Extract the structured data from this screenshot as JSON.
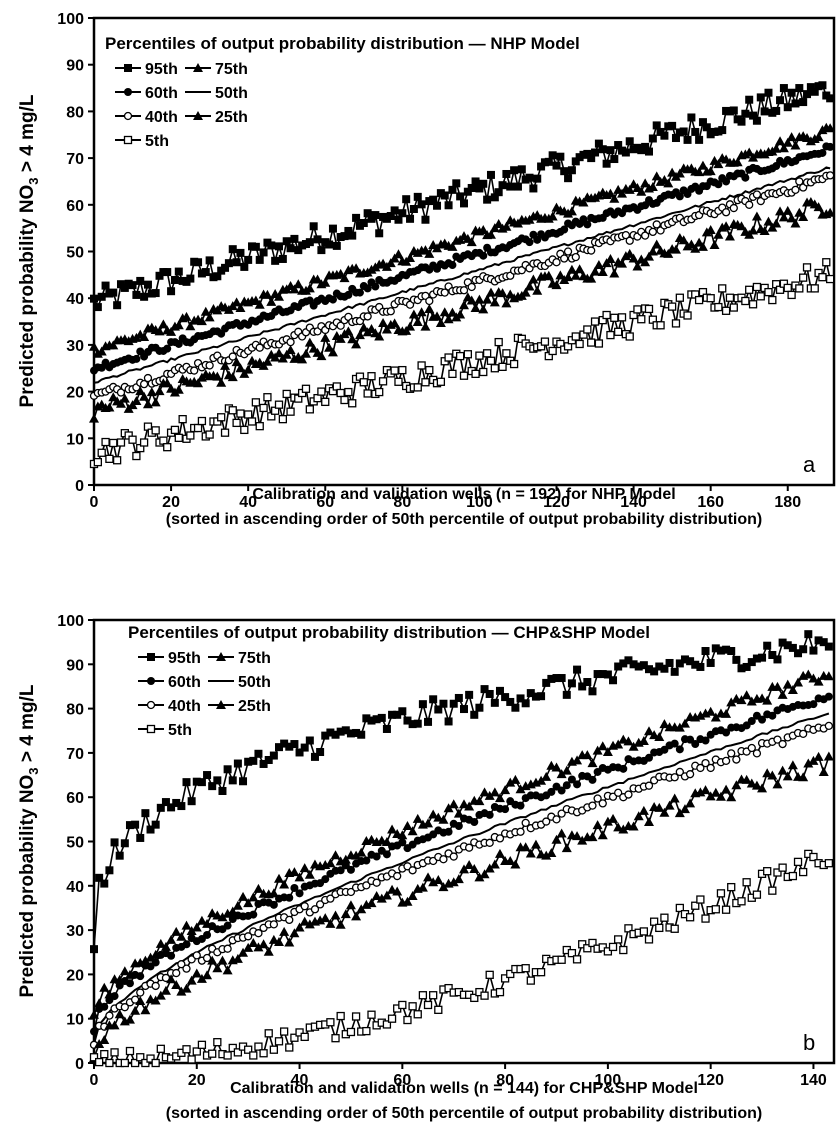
{
  "chart_data": [
    {
      "type": "line",
      "panel": "a",
      "title": "Percentiles of output probability distribution — NHP Model",
      "xlabel": "Calibration and validation wells (n = 192) for NHP Model",
      "xlabel2": "(sorted in ascending order of 50th percentile of output probability distribution)",
      "ylabel_main": "Predicted probability NO",
      "ylabel_sub": "3",
      "ylabel_tail": " > 4 mg/L",
      "xlim": [
        0,
        192
      ],
      "ylim": [
        0,
        100
      ],
      "xticks": [
        "0",
        "20",
        "40",
        "60",
        "80",
        "100",
        "120",
        "140",
        "160",
        "180"
      ],
      "yticks": [
        "0",
        "10",
        "20",
        "30",
        "40",
        "50",
        "60",
        "70",
        "80",
        "90",
        "100"
      ],
      "n": 192,
      "series": [
        {
          "name": "95th",
          "marker": "filled-square",
          "start": 39,
          "end": 85,
          "noise": 3
        },
        {
          "name": "75th",
          "marker": "filled-triangle",
          "start": 29,
          "end": 76,
          "noise": 1.2
        },
        {
          "name": "60th",
          "marker": "filled-circle",
          "start": 25,
          "end": 72,
          "noise": 0.8
        },
        {
          "name": "50th",
          "marker": "none",
          "start": 22,
          "end": 68,
          "noise": 0.3
        },
        {
          "name": "40th",
          "marker": "open-circle",
          "start": 19,
          "end": 66,
          "noise": 1
        },
        {
          "name": "25th",
          "marker": "filled-triangle",
          "start": 16,
          "end": 60,
          "noise": 2
        },
        {
          "name": "5th",
          "marker": "open-square",
          "start": 7,
          "end": 45,
          "noise": 3
        }
      ]
    },
    {
      "type": "line",
      "panel": "b",
      "title": "Percentiles of output probability distribution — CHP&SHP Model",
      "xlabel": "Calibration and validation wells (n = 144) for CHP&SHP Model",
      "xlabel2": "(sorted in ascending order of 50th percentile of output probability distribution)",
      "ylabel_main": "Predicted probability NO",
      "ylabel_sub": "3",
      "ylabel_tail": " > 4 mg/L",
      "xlim": [
        0,
        144
      ],
      "ylim": [
        0,
        100
      ],
      "xticks": [
        "0",
        "20",
        "40",
        "60",
        "80",
        "100",
        "120",
        "140"
      ],
      "yticks": [
        "0",
        "10",
        "20",
        "30",
        "40",
        "50",
        "60",
        "70",
        "80",
        "90",
        "100"
      ],
      "n": 144,
      "series": [
        {
          "name": "95th",
          "marker": "filled-square",
          "start": 28,
          "end": 95,
          "noise": 3
        },
        {
          "name": "75th",
          "marker": "filled-triangle",
          "start": 10,
          "end": 88,
          "noise": 1.5
        },
        {
          "name": "60th",
          "marker": "filled-circle",
          "start": 8,
          "end": 83,
          "noise": 1
        },
        {
          "name": "50th",
          "marker": "none",
          "start": 5,
          "end": 79,
          "noise": 0.3
        },
        {
          "name": "40th",
          "marker": "open-circle",
          "start": 4,
          "end": 76,
          "noise": 1
        },
        {
          "name": "25th",
          "marker": "filled-triangle",
          "start": 2,
          "end": 68,
          "noise": 2
        },
        {
          "name": "5th",
          "marker": "open-square",
          "start": 0,
          "end": 47,
          "noise": 2.5
        }
      ]
    }
  ]
}
